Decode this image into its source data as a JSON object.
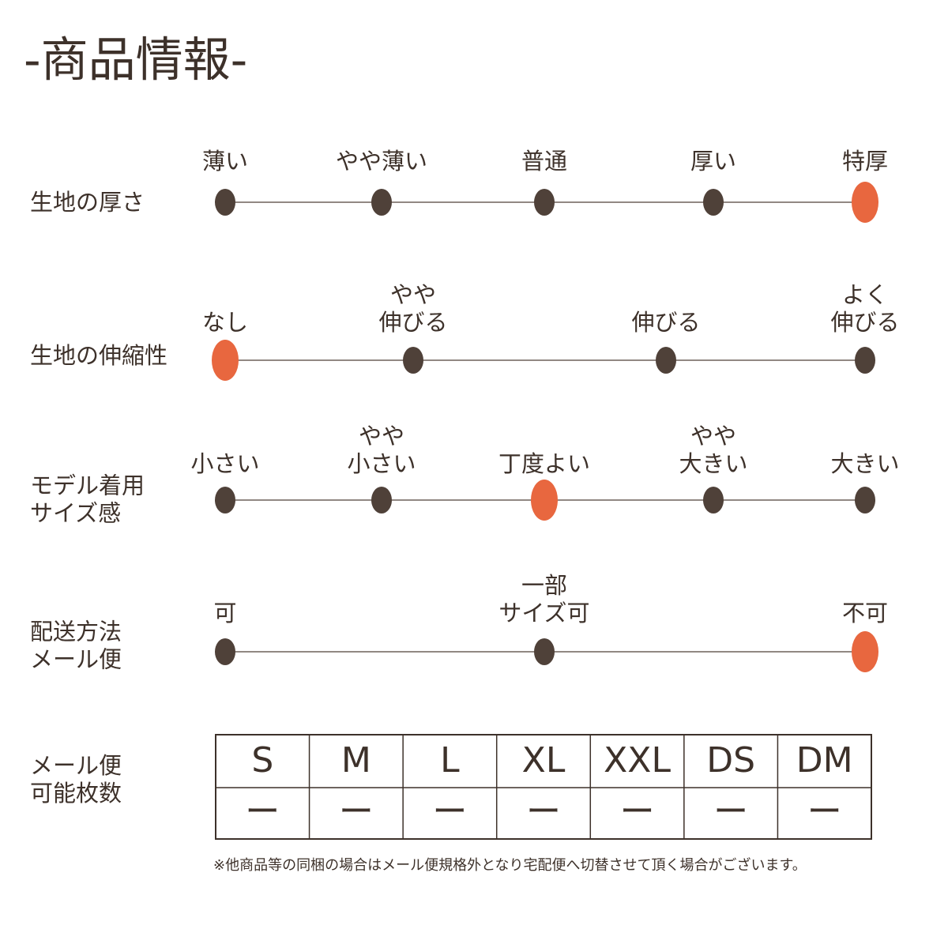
{
  "title": "-商品情報-",
  "dot_color": "#4f4139",
  "selected_color": "#e8673f",
  "rows": [
    {
      "label": [
        "生地の厚さ"
      ],
      "options": [
        {
          "label": [
            "薄い"
          ],
          "selected": false
        },
        {
          "label": [
            "やや薄い"
          ],
          "selected": false
        },
        {
          "label": [
            "普通"
          ],
          "selected": false
        },
        {
          "label": [
            "厚い"
          ],
          "selected": false
        },
        {
          "label": [
            "特厚"
          ],
          "selected": true
        }
      ]
    },
    {
      "label": [
        "生地の伸縮性"
      ],
      "options": [
        {
          "label": [
            "なし"
          ],
          "selected": true
        },
        {
          "label": [
            "やや",
            "伸びる"
          ],
          "selected": false
        },
        {
          "label": [
            "伸びる"
          ],
          "selected": false
        },
        {
          "label": [
            "よく",
            "伸びる"
          ],
          "selected": false
        }
      ]
    },
    {
      "label": [
        "モデル着用",
        "サイズ感"
      ],
      "options": [
        {
          "label": [
            "小さい"
          ],
          "selected": false
        },
        {
          "label": [
            "やや",
            "小さい"
          ],
          "selected": false
        },
        {
          "label": [
            "丁度よい"
          ],
          "selected": true
        },
        {
          "label": [
            "やや",
            "大きい"
          ],
          "selected": false
        },
        {
          "label": [
            "大きい"
          ],
          "selected": false
        }
      ]
    },
    {
      "label": [
        "配送方法",
        "メール便"
      ],
      "options": [
        {
          "label": [
            "可"
          ],
          "selected": false
        },
        {
          "label": [
            "一部",
            "サイズ可"
          ],
          "selected": false
        },
        {
          "label": [
            "不可"
          ],
          "selected": true
        }
      ]
    }
  ],
  "table": {
    "label": [
      "メール便",
      "可能枚数"
    ],
    "header": [
      "S",
      "M",
      "L",
      "XL",
      "XXL",
      "DS",
      "DM"
    ],
    "values": [
      "ー",
      "ー",
      "ー",
      "ー",
      "ー",
      "ー",
      "ー"
    ]
  },
  "footnote": "※他商品等の同梱の場合はメール便規格外となり宅配便へ切替させて頂く場合がございます。"
}
